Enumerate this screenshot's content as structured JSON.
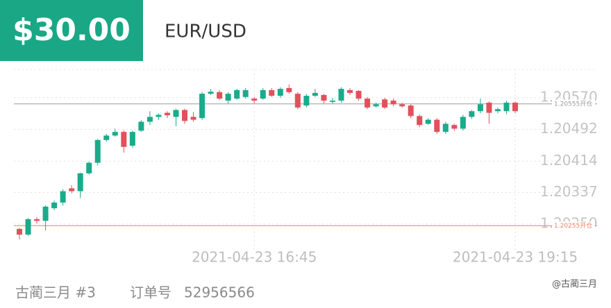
{
  "header": {
    "amount": "$30.00",
    "pair": "EUR/USD"
  },
  "footer": {
    "user": "古蔺三月 #3",
    "order_label": "订单号",
    "order_number": "52956566"
  },
  "watermark": "@古蔺三月",
  "chart_data": {
    "type": "candlestick",
    "categories": [
      null,
      null,
      null,
      null,
      null,
      null,
      null,
      null,
      null,
      null,
      null,
      null,
      null,
      null,
      null,
      null,
      null,
      null,
      null,
      null,
      null,
      null,
      null,
      null,
      null,
      null,
      null,
      "2021-04-23 16:45",
      null,
      null,
      null,
      null,
      null,
      null,
      null,
      null,
      null,
      null,
      null,
      null,
      null,
      null,
      null,
      null,
      null,
      null,
      null,
      null,
      null,
      null,
      null,
      null,
      null,
      null,
      null,
      null,
      null,
      "2021-04-23 19:15"
    ],
    "open": [
      1.20247,
      1.20233,
      1.20271,
      1.20267,
      1.20298,
      1.20312,
      1.20347,
      1.2034,
      1.20384,
      1.2041,
      1.20466,
      1.20477,
      1.20486,
      1.20452,
      1.20489,
      1.20511,
      1.20523,
      1.20533,
      1.20523,
      1.2054,
      1.20523,
      1.2052,
      1.2058,
      1.20584,
      1.20563,
      1.20568,
      1.20572,
      1.20568,
      1.20568,
      1.20589,
      1.20575,
      1.20594,
      1.2058,
      1.20551,
      1.20575,
      1.20577,
      1.2056,
      1.20563,
      1.20589,
      1.20587,
      1.20568,
      1.20549,
      1.20566,
      1.20563,
      1.20554,
      1.20551,
      1.20525,
      1.20506,
      1.20516,
      1.20486,
      1.20503,
      1.20494,
      1.20523,
      1.20537,
      1.20558,
      1.20537,
      1.20537,
      1.20558
    ],
    "high": [
      1.2025,
      1.20274,
      1.20276,
      1.20305,
      1.20317,
      1.20345,
      1.20355,
      1.20386,
      1.20413,
      1.20469,
      1.20481,
      1.20494,
      1.2049,
      1.20489,
      1.20515,
      1.20537,
      1.20532,
      1.20537,
      1.20543,
      1.20543,
      1.20535,
      1.20585,
      1.20592,
      1.20589,
      1.20584,
      1.20592,
      1.20594,
      1.20572,
      1.20594,
      1.20594,
      1.20596,
      1.20603,
      1.20584,
      1.2058,
      1.20592,
      1.2058,
      1.2057,
      1.20596,
      1.20594,
      1.20589,
      1.20572,
      1.20558,
      1.2057,
      1.20568,
      1.20558,
      1.20554,
      1.20529,
      1.2052,
      1.2052,
      1.20511,
      1.20506,
      1.20528,
      1.2054,
      1.20568,
      1.20561,
      1.20546,
      1.20563,
      1.20561
    ],
    "low": [
      1.20221,
      1.2023,
      1.2026,
      1.20243,
      1.20293,
      1.20305,
      1.20335,
      1.20323,
      1.20381,
      1.20403,
      1.20462,
      1.20474,
      1.20435,
      1.20447,
      1.20486,
      1.20503,
      1.20515,
      1.2052,
      1.205,
      1.20506,
      1.20511,
      1.20515,
      1.20577,
      1.20565,
      1.20556,
      1.20565,
      1.20568,
      1.20556,
      1.20565,
      1.20572,
      1.2057,
      1.2058,
      1.20542,
      1.20546,
      1.20572,
      1.20556,
      1.20556,
      1.20558,
      1.20577,
      1.20563,
      1.20542,
      1.20546,
      1.20542,
      1.20549,
      1.20546,
      1.2052,
      1.20498,
      1.20503,
      1.20481,
      1.20481,
      1.20489,
      1.20489,
      1.20518,
      1.20532,
      1.20506,
      1.20532,
      1.2053,
      1.20532
    ],
    "close": [
      1.20233,
      1.20271,
      1.20267,
      1.20302,
      1.20312,
      1.2034,
      1.2034,
      1.20384,
      1.2041,
      1.20466,
      1.20477,
      1.20486,
      1.20449,
      1.20486,
      1.20511,
      1.20523,
      1.20528,
      1.20527,
      1.2054,
      1.20513,
      1.20516,
      1.2058,
      1.20585,
      1.20568,
      1.2058,
      1.20589,
      1.20589,
      1.20563,
      1.20589,
      1.20575,
      1.20592,
      1.20584,
      1.20546,
      1.20575,
      1.20582,
      1.20563,
      1.20563,
      1.20592,
      1.20582,
      1.20568,
      1.20546,
      1.20554,
      1.20546,
      1.20554,
      1.20549,
      1.20525,
      1.20503,
      1.20516,
      1.20486,
      1.20506,
      1.20494,
      1.20523,
      1.20537,
      1.20554,
      1.20533,
      1.20542,
      1.20558,
      1.20537
    ],
    "up_color": "#1aab8b",
    "down_color": "#e2505c",
    "ylim": [
      1.2023,
      1.2064
    ],
    "yticks": [
      {
        "value": 1.2057,
        "label": "1.20570"
      },
      {
        "value": 1.20492,
        "label": "1.20492"
      },
      {
        "value": 1.20414,
        "label": "1.20414"
      },
      {
        "value": 1.20337,
        "label": "1.20337"
      },
      {
        "value": 1.20259,
        "label": "1.20259"
      }
    ],
    "grid": true,
    "reference_lines": [
      {
        "value": 1.20555,
        "label": "1.20555开仓",
        "color": "#9a9a9a"
      },
      {
        "value": 1.20255,
        "label": "1.20255开仓",
        "color": "#f0825a"
      }
    ]
  }
}
